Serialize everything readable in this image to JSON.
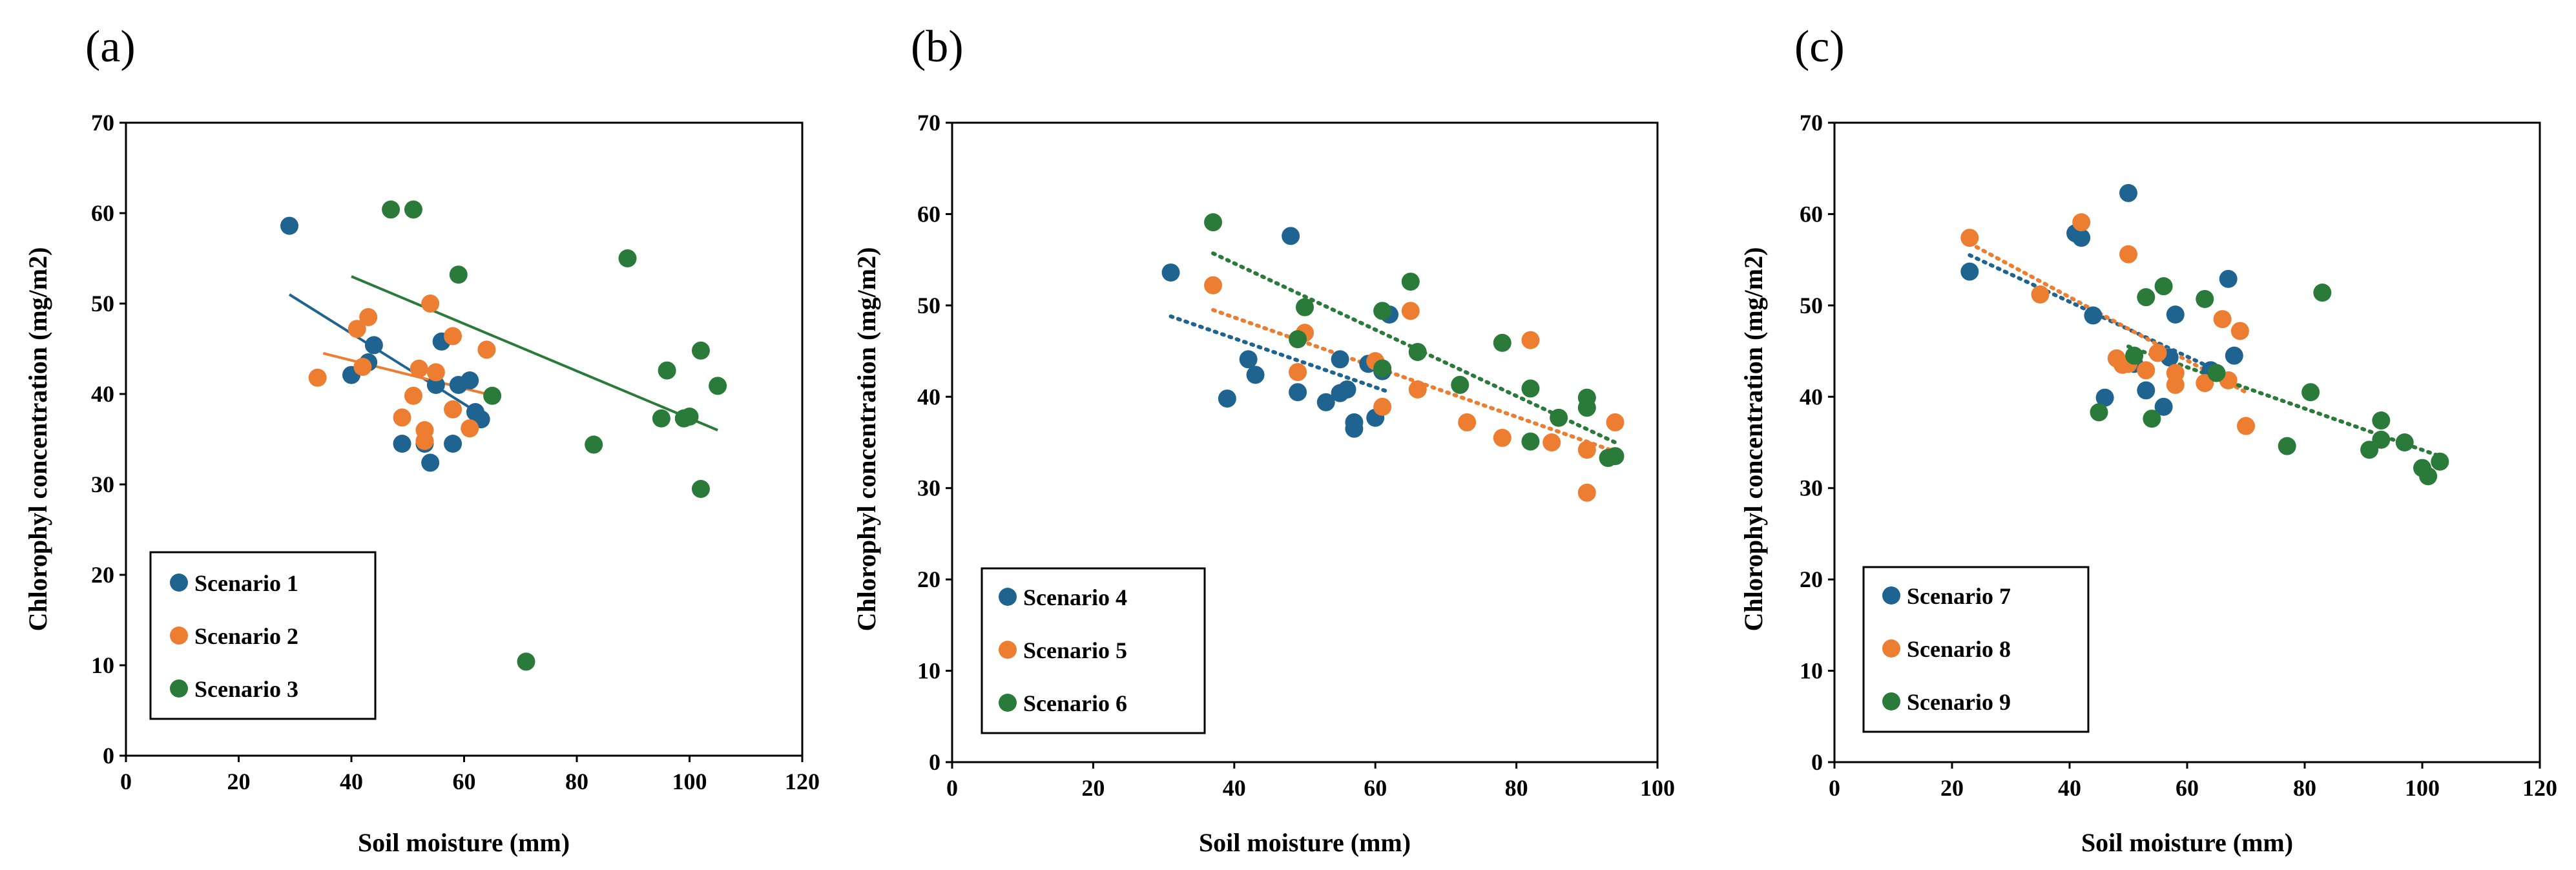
{
  "colors": {
    "blue": "#1f6491",
    "orange": "#ed7d31",
    "green": "#2a7a3a"
  },
  "chart_data": [
    {
      "panel": "(a)",
      "type": "scatter",
      "xlabel": "Soil moisture (mm)",
      "ylabel": "Chlorophyl concentration (mg/m2)",
      "xlim": [
        0,
        120
      ],
      "ylim": [
        0,
        70
      ],
      "xticks": [
        "0",
        "20",
        "40",
        "60",
        "80",
        "100",
        "120"
      ],
      "yticks": [
        "0",
        "10",
        "20",
        "30",
        "40",
        "50",
        "60",
        "70"
      ],
      "trendline_style": "solid",
      "legend_position": "bottom-left",
      "series": [
        {
          "name": "Scenario 1",
          "color": "blue",
          "points": [
            [
              29,
              58.6
            ],
            [
              40,
              42.1
            ],
            [
              43,
              43.5
            ],
            [
              44,
              45.4
            ],
            [
              49,
              34.5
            ],
            [
              53,
              34.5
            ],
            [
              54,
              32.4
            ],
            [
              55,
              41.0
            ],
            [
              56,
              45.8
            ],
            [
              58,
              34.5
            ],
            [
              59,
              41.0
            ],
            [
              61,
              41.5
            ],
            [
              62,
              38.0
            ],
            [
              63,
              37.2
            ]
          ],
          "trend": [
            [
              29,
              51
            ],
            [
              61,
              38.5
            ]
          ]
        },
        {
          "name": "Scenario 2",
          "color": "orange",
          "points": [
            [
              34,
              41.8
            ],
            [
              41,
              47.2
            ],
            [
              42,
              43.0
            ],
            [
              43,
              48.5
            ],
            [
              49,
              37.4
            ],
            [
              51,
              39.8
            ],
            [
              52,
              42.8
            ],
            [
              53,
              34.8
            ],
            [
              53,
              36.0
            ],
            [
              54,
              50.0
            ],
            [
              55,
              42.4
            ],
            [
              58,
              46.4
            ],
            [
              58,
              38.3
            ],
            [
              61,
              36.2
            ],
            [
              64,
              44.9
            ]
          ],
          "trend": [
            [
              35,
              44.5
            ],
            [
              64,
              40.0
            ]
          ]
        },
        {
          "name": "Scenario 3",
          "color": "green",
          "points": [
            [
              47,
              60.4
            ],
            [
              51,
              60.4
            ],
            [
              59,
              53.2
            ],
            [
              65,
              39.8
            ],
            [
              71,
              10.4
            ],
            [
              83,
              34.4
            ],
            [
              89,
              55.0
            ],
            [
              95,
              37.3
            ],
            [
              96,
              42.6
            ],
            [
              99,
              37.3
            ],
            [
              100,
              37.5
            ],
            [
              102,
              44.8
            ],
            [
              102,
              29.5
            ],
            [
              105,
              40.9
            ]
          ],
          "trend": [
            [
              40,
              53
            ],
            [
              105,
              36
            ]
          ]
        }
      ]
    },
    {
      "panel": "(b)",
      "type": "scatter",
      "xlabel": "Soil moisture (mm)",
      "ylabel": "Chlorophyl concentration (mg/m2)",
      "xlim": [
        0,
        100
      ],
      "ylim": [
        0,
        70
      ],
      "xticks": [
        "0",
        "20",
        "40",
        "60",
        "80",
        "100"
      ],
      "yticks": [
        "0",
        "10",
        "20",
        "30",
        "40",
        "50",
        "60",
        "70"
      ],
      "trendline_style": "dotted",
      "legend_position": "bottom-left",
      "series": [
        {
          "name": "Scenario 4",
          "color": "blue",
          "points": [
            [
              31,
              53.6
            ],
            [
              39,
              39.8
            ],
            [
              42,
              44.1
            ],
            [
              43,
              42.4
            ],
            [
              48,
              57.6
            ],
            [
              49,
              40.5
            ],
            [
              53,
              39.4
            ],
            [
              55,
              40.4
            ],
            [
              55,
              44.1
            ],
            [
              56,
              40.8
            ],
            [
              57,
              37.2
            ],
            [
              57,
              36.5
            ],
            [
              59,
              43.6
            ],
            [
              60,
              37.7
            ],
            [
              61,
              42.8
            ],
            [
              62,
              49.0
            ]
          ],
          "trend": [
            [
              31,
              48.8
            ],
            [
              62,
              40.5
            ]
          ]
        },
        {
          "name": "Scenario 5",
          "color": "orange",
          "points": [
            [
              37,
              52.2
            ],
            [
              49,
              42.7
            ],
            [
              50,
              47.0
            ],
            [
              60,
              43.9
            ],
            [
              61,
              38.9
            ],
            [
              65,
              49.4
            ],
            [
              66,
              40.8
            ],
            [
              73,
              37.2
            ],
            [
              78,
              35.5
            ],
            [
              82,
              46.2
            ],
            [
              85,
              35.0
            ],
            [
              90,
              34.2
            ],
            [
              90,
              29.5
            ],
            [
              94,
              37.2
            ]
          ],
          "trend": [
            [
              37,
              49.5
            ],
            [
              94,
              34.0
            ]
          ]
        },
        {
          "name": "Scenario 6",
          "color": "green",
          "points": [
            [
              37,
              59.1
            ],
            [
              49,
              46.3
            ],
            [
              50,
              49.8
            ],
            [
              61,
              43.1
            ],
            [
              61,
              49.4
            ],
            [
              65,
              52.6
            ],
            [
              66,
              44.9
            ],
            [
              72,
              41.3
            ],
            [
              78,
              45.9
            ],
            [
              82,
              40.9
            ],
            [
              82,
              35.1
            ],
            [
              86,
              37.7
            ],
            [
              90,
              38.8
            ],
            [
              90,
              39.9
            ],
            [
              93,
              33.3
            ],
            [
              94,
              33.5
            ]
          ],
          "trend": [
            [
              37,
              55.7
            ],
            [
              94,
              35.0
            ]
          ]
        }
      ]
    },
    {
      "panel": "(c)",
      "type": "scatter",
      "xlabel": "Soil moisture (mm)",
      "ylabel": "Chlorophyl concentration (mg/m2)",
      "xlim": [
        0,
        120
      ],
      "ylim": [
        0,
        70
      ],
      "xticks": [
        "0",
        "20",
        "40",
        "60",
        "80",
        "100",
        "120"
      ],
      "yticks": [
        "0",
        "10",
        "20",
        "30",
        "40",
        "50",
        "60",
        "70"
      ],
      "trendline_style": "dotted",
      "legend_position": "bottom-left",
      "series": [
        {
          "name": "Scenario 7",
          "color": "blue",
          "points": [
            [
              23,
              53.7
            ],
            [
              41,
              57.9
            ],
            [
              42,
              57.4
            ],
            [
              44,
              48.9
            ],
            [
              46,
              39.9
            ],
            [
              50,
              62.3
            ],
            [
              51,
              43.6
            ],
            [
              53,
              40.7
            ],
            [
              56,
              38.9
            ],
            [
              57,
              44.3
            ],
            [
              58,
              49.0
            ],
            [
              64,
              42.9
            ],
            [
              67,
              52.9
            ],
            [
              68,
              44.5
            ]
          ],
          "trend": [
            [
              23,
              55.5
            ],
            [
              68,
              42.0
            ]
          ]
        },
        {
          "name": "Scenario 8",
          "color": "orange",
          "points": [
            [
              23,
              57.4
            ],
            [
              35,
              51.2
            ],
            [
              42,
              59.1
            ],
            [
              48,
              44.2
            ],
            [
              49,
              43.5
            ],
            [
              50,
              55.6
            ],
            [
              50,
              43.6
            ],
            [
              53,
              42.9
            ],
            [
              55,
              44.8
            ],
            [
              58,
              42.6
            ],
            [
              58,
              41.3
            ],
            [
              63,
              41.5
            ],
            [
              66,
              48.5
            ],
            [
              67,
              41.8
            ],
            [
              69,
              47.2
            ],
            [
              70,
              36.8
            ]
          ],
          "trend": [
            [
              23,
              56.8
            ],
            [
              70,
              40.5
            ]
          ]
        },
        {
          "name": "Scenario 9",
          "color": "green",
          "points": [
            [
              45,
              38.3
            ],
            [
              51,
              44.5
            ],
            [
              53,
              50.9
            ],
            [
              54,
              37.6
            ],
            [
              56,
              52.1
            ],
            [
              63,
              50.7
            ],
            [
              65,
              42.6
            ],
            [
              77,
              34.6
            ],
            [
              81,
              40.5
            ],
            [
              83,
              51.4
            ],
            [
              91,
              34.2
            ],
            [
              93,
              37.4
            ],
            [
              93,
              35.3
            ],
            [
              97,
              35.0
            ],
            [
              100,
              32.2
            ],
            [
              101,
              31.3
            ],
            [
              103,
              32.9
            ]
          ],
          "trend": [
            [
              50,
              45.5
            ],
            [
              103,
              33.5
            ]
          ]
        }
      ]
    }
  ]
}
